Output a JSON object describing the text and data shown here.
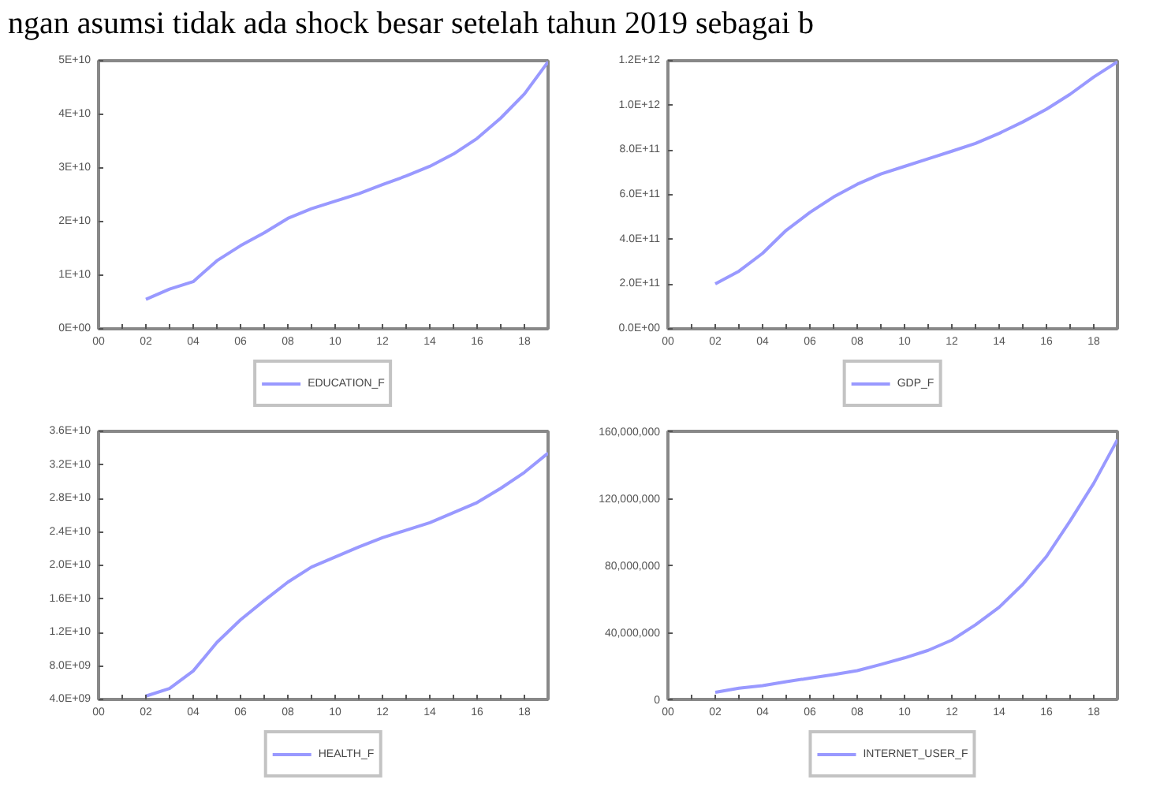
{
  "chart_data": [
    {
      "type": "line",
      "annotations": [
        "ngan asumsi tidak ada shock besar setelah tahun 2019 sebagai b"
      ],
      "x": [
        2002,
        2003,
        2004,
        2005,
        2006,
        2007,
        2008,
        2009,
        2010,
        2011,
        2012,
        2013,
        2014,
        2015,
        2016,
        2017,
        2018,
        2019
      ],
      "series": [
        {
          "name": "EDUCATION_F",
          "color": "#9999ff",
          "values": [
            5500000000.0,
            7400000000.0,
            8800000000.0,
            12700000000.0,
            15500000000.0,
            17900000000.0,
            20600000000.0,
            22400000000.0,
            23800000000.0,
            25200000000.0,
            26900000000.0,
            28500000000.0,
            30300000000.0,
            32600000000.0,
            35500000000.0,
            39300000000.0,
            43800000000.0,
            49800000000.0
          ]
        }
      ],
      "xlim": [
        2000,
        2019
      ],
      "xticks": [
        {
          "value": 2000,
          "label": "00"
        },
        {
          "value": 2001,
          "label": null
        },
        {
          "value": 2002,
          "label": "02"
        },
        {
          "value": 2003,
          "label": null
        },
        {
          "value": 2004,
          "label": "04"
        },
        {
          "value": 2005,
          "label": null
        },
        {
          "value": 2006,
          "label": "06"
        },
        {
          "value": 2007,
          "label": null
        },
        {
          "value": 2008,
          "label": "08"
        },
        {
          "value": 2009,
          "label": null
        },
        {
          "value": 2010,
          "label": "10"
        },
        {
          "value": 2011,
          "label": null
        },
        {
          "value": 2012,
          "label": "12"
        },
        {
          "value": 2013,
          "label": null
        },
        {
          "value": 2014,
          "label": "14"
        },
        {
          "value": 2015,
          "label": null
        },
        {
          "value": 2016,
          "label": "16"
        },
        {
          "value": 2017,
          "label": null
        },
        {
          "value": 2018,
          "label": "18"
        }
      ],
      "ylim": [
        0,
        50000000000.0
      ],
      "yticks": [
        {
          "value": 0,
          "label": "0E+00"
        },
        {
          "value": 10000000000.0,
          "label": "1E+10"
        },
        {
          "value": 20000000000.0,
          "label": "2E+10"
        },
        {
          "value": 30000000000.0,
          "label": "3E+10"
        },
        {
          "value": 40000000000.0,
          "label": "4E+10"
        },
        {
          "value": 50000000000.0,
          "label": "5E+10"
        }
      ],
      "legend": "bottom",
      "grid": false
    },
    {
      "type": "line",
      "x": [
        2002,
        2003,
        2004,
        2005,
        2006,
        2007,
        2008,
        2009,
        2010,
        2011,
        2012,
        2013,
        2014,
        2015,
        2016,
        2017,
        2018,
        2019
      ],
      "series": [
        {
          "name": "GDP_F",
          "color": "#9999ff",
          "values": [
            201000000000.0,
            258000000000.0,
            338000000000.0,
            441000000000.0,
            521000000000.0,
            590000000000.0,
            647000000000.0,
            693000000000.0,
            727000000000.0,
            761000000000.0,
            795000000000.0,
            830000000000.0,
            875000000000.0,
            926000000000.0,
            983000000000.0,
            1050000000000.0,
            1127000000000.0,
            1195000000000.0
          ]
        }
      ],
      "xlim": [
        2000,
        2019
      ],
      "xticks": [
        {
          "value": 2000,
          "label": "00"
        },
        {
          "value": 2001,
          "label": null
        },
        {
          "value": 2002,
          "label": "02"
        },
        {
          "value": 2003,
          "label": null
        },
        {
          "value": 2004,
          "label": "04"
        },
        {
          "value": 2005,
          "label": null
        },
        {
          "value": 2006,
          "label": "06"
        },
        {
          "value": 2007,
          "label": null
        },
        {
          "value": 2008,
          "label": "08"
        },
        {
          "value": 2009,
          "label": null
        },
        {
          "value": 2010,
          "label": "10"
        },
        {
          "value": 2011,
          "label": null
        },
        {
          "value": 2012,
          "label": "12"
        },
        {
          "value": 2013,
          "label": null
        },
        {
          "value": 2014,
          "label": "14"
        },
        {
          "value": 2015,
          "label": null
        },
        {
          "value": 2016,
          "label": "16"
        },
        {
          "value": 2017,
          "label": null
        },
        {
          "value": 2018,
          "label": "18"
        }
      ],
      "ylim": [
        0,
        1200000000000.0
      ],
      "yticks": [
        {
          "value": 0,
          "label": "0.0E+00"
        },
        {
          "value": 200000000000.0,
          "label": "2.0E+11"
        },
        {
          "value": 400000000000.0,
          "label": "4.0E+11"
        },
        {
          "value": 600000000000.0,
          "label": "6.0E+11"
        },
        {
          "value": 800000000000.0,
          "label": "8.0E+11"
        },
        {
          "value": 1000000000000.0,
          "label": "1.0E+12"
        },
        {
          "value": 1200000000000.0,
          "label": "1.2E+12"
        }
      ],
      "legend": "bottom",
      "grid": false
    },
    {
      "type": "line",
      "x": [
        2002,
        2003,
        2004,
        2005,
        2006,
        2007,
        2008,
        2009,
        2010,
        2011,
        2012,
        2013,
        2014,
        2015,
        2016,
        2017,
        2018,
        2019
      ],
      "series": [
        {
          "name": "HEALTH_F",
          "color": "#9999ff",
          "values": [
            4400000000.0,
            5300000000.0,
            7400000000.0,
            10800000000.0,
            13500000000.0,
            15800000000.0,
            18000000000.0,
            19800000000.0,
            21000000000.0,
            22200000000.0,
            23300000000.0,
            24200000000.0,
            25100000000.0,
            26300000000.0,
            27500000000.0,
            29200000000.0,
            31100000000.0,
            33400000000.0
          ]
        }
      ],
      "xlim": [
        2000,
        2019
      ],
      "xticks": [
        {
          "value": 2000,
          "label": "00"
        },
        {
          "value": 2001,
          "label": null
        },
        {
          "value": 2002,
          "label": "02"
        },
        {
          "value": 2003,
          "label": null
        },
        {
          "value": 2004,
          "label": "04"
        },
        {
          "value": 2005,
          "label": null
        },
        {
          "value": 2006,
          "label": "06"
        },
        {
          "value": 2007,
          "label": null
        },
        {
          "value": 2008,
          "label": "08"
        },
        {
          "value": 2009,
          "label": null
        },
        {
          "value": 2010,
          "label": "10"
        },
        {
          "value": 2011,
          "label": null
        },
        {
          "value": 2012,
          "label": "12"
        },
        {
          "value": 2013,
          "label": null
        },
        {
          "value": 2014,
          "label": "14"
        },
        {
          "value": 2015,
          "label": null
        },
        {
          "value": 2016,
          "label": "16"
        },
        {
          "value": 2017,
          "label": null
        },
        {
          "value": 2018,
          "label": "18"
        }
      ],
      "ylim": [
        4000000000.0,
        36000000000.0
      ],
      "yticks": [
        {
          "value": 4000000000.0,
          "label": "4.0E+09"
        },
        {
          "value": 8000000000.0,
          "label": "8.0E+09"
        },
        {
          "value": 12000000000.0,
          "label": "1.2E+10"
        },
        {
          "value": 16000000000.0,
          "label": "1.6E+10"
        },
        {
          "value": 20000000000.0,
          "label": "2.0E+10"
        },
        {
          "value": 24000000000.0,
          "label": "2.4E+10"
        },
        {
          "value": 28000000000.0,
          "label": "2.8E+10"
        },
        {
          "value": 32000000000.0,
          "label": "3.2E+10"
        },
        {
          "value": 36000000000.0,
          "label": "3.6E+10"
        }
      ],
      "legend": "bottom",
      "grid": false
    },
    {
      "type": "line",
      "x": [
        2002,
        2003,
        2004,
        2005,
        2006,
        2007,
        2008,
        2009,
        2010,
        2011,
        2012,
        2013,
        2014,
        2015,
        2016,
        2017,
        2018,
        2019
      ],
      "series": [
        {
          "name": "INTERNET_USER_F",
          "color": "#9999ff",
          "values": [
            4200000,
            6700000,
            8200000,
            10600000,
            12700000,
            14800000,
            17200000,
            20900000,
            24800000,
            29300000,
            35400000,
            44500000,
            55000000,
            68700000,
            85300000,
            106500000,
            129000000,
            155000000
          ]
        }
      ],
      "xlim": [
        2000,
        2019
      ],
      "xticks": [
        {
          "value": 2000,
          "label": "00"
        },
        {
          "value": 2001,
          "label": null
        },
        {
          "value": 2002,
          "label": "02"
        },
        {
          "value": 2003,
          "label": null
        },
        {
          "value": 2004,
          "label": "04"
        },
        {
          "value": 2005,
          "label": null
        },
        {
          "value": 2006,
          "label": "06"
        },
        {
          "value": 2007,
          "label": null
        },
        {
          "value": 2008,
          "label": "08"
        },
        {
          "value": 2009,
          "label": null
        },
        {
          "value": 2010,
          "label": "10"
        },
        {
          "value": 2011,
          "label": null
        },
        {
          "value": 2012,
          "label": "12"
        },
        {
          "value": 2013,
          "label": null
        },
        {
          "value": 2014,
          "label": "14"
        },
        {
          "value": 2015,
          "label": null
        },
        {
          "value": 2016,
          "label": "16"
        },
        {
          "value": 2017,
          "label": null
        },
        {
          "value": 2018,
          "label": "18"
        }
      ],
      "ylim": [
        0,
        160000000
      ],
      "yticks": [
        {
          "value": 0,
          "label": "0"
        },
        {
          "value": 40000000,
          "label": "40,000,000"
        },
        {
          "value": 80000000,
          "label": "80,000,000"
        },
        {
          "value": 120000000,
          "label": "120,000,000"
        },
        {
          "value": 160000000,
          "label": "160,000,000"
        }
      ],
      "legend": "bottom",
      "grid": false
    }
  ]
}
